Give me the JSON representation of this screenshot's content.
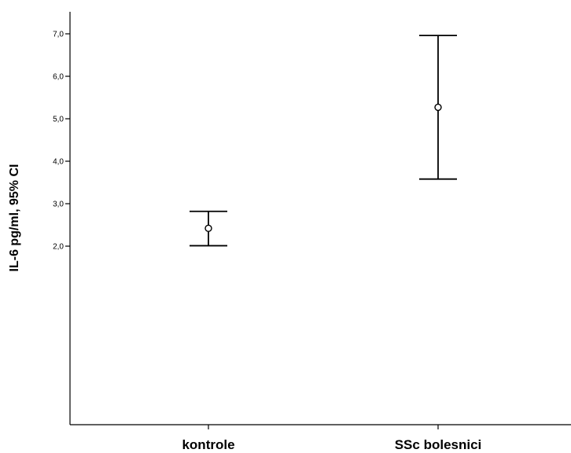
{
  "chart_data": {
    "type": "errorbar",
    "title": "",
    "xlabel": "",
    "ylabel": "IL-6 pg/ml, 95% CI",
    "ylim": [
      1.7,
      7.3
    ],
    "yticks": [
      2.0,
      3.0,
      4.0,
      5.0,
      6.0,
      7.0
    ],
    "ytick_labels": [
      "2,0",
      "3,0",
      "4,0",
      "5,0",
      "6,0",
      "7,0"
    ],
    "categories": [
      "kontrole",
      "SSc bolesnici"
    ],
    "means": [
      2.42,
      5.27
    ],
    "lower": [
      2.01,
      3.58
    ],
    "upper": [
      2.82,
      6.96
    ],
    "grid": false,
    "legend": "none"
  }
}
